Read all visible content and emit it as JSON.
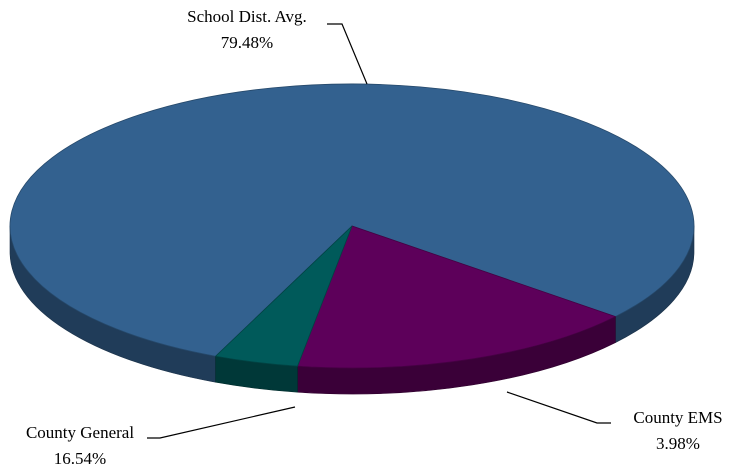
{
  "chart_data": {
    "type": "pie",
    "title": "",
    "slices": [
      {
        "label": "School Dist. Avg.",
        "value_text": "79.48%",
        "value": 79.48,
        "color": "#33618f"
      },
      {
        "label": "County General",
        "value_text": "16.54%",
        "value": 16.54,
        "color": "#5d005a"
      },
      {
        "label": "County EMS",
        "value_text": "3.98%",
        "value": 3.98,
        "color": "#005a5a"
      }
    ],
    "style": "3d-tilted"
  }
}
